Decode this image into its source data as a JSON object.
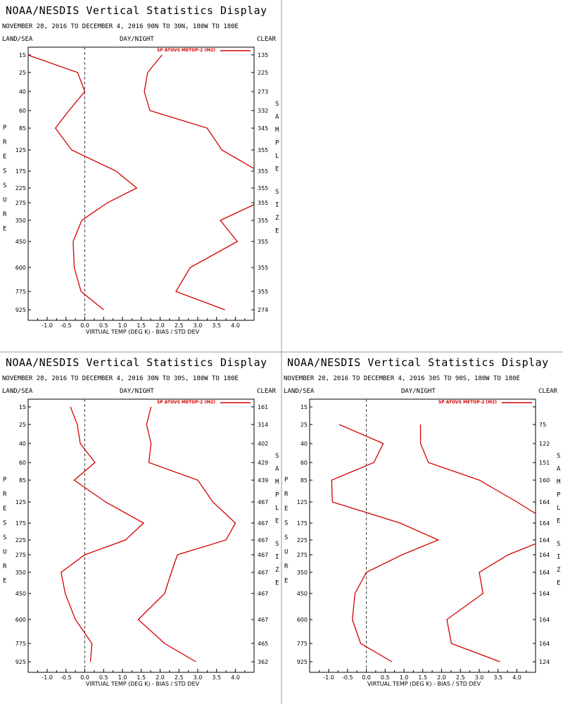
{
  "colors": {
    "line": "#d40000",
    "axis": "#000000",
    "divider": "#999999",
    "zero": "#444444"
  },
  "pressure_levels": [
    "15",
    "25",
    "40",
    "60",
    "85",
    "125",
    "175",
    "225",
    "275",
    "350",
    "450",
    "600",
    "775",
    "925"
  ],
  "x_ticks": [
    "-1.0",
    "-0.5",
    "0.0",
    "0.5",
    "1.0",
    "1.5",
    "2.0",
    "2.5",
    "3.0",
    "3.5",
    "4.0"
  ],
  "labels": {
    "left_header": "LAND/SEA",
    "mid_header": "DAY/NIGHT",
    "right_header": "CLEAR",
    "pressure_vertical": "PRESSURE",
    "sample_vertical": "SAMPLE",
    "size_vertical": "SIZE",
    "xlabel": "VIRTUAL TEMP (DEG K) - BIAS / STD DEV",
    "legend": "SP ATOVS METOP-2 (M2)"
  },
  "chart_data": [
    {
      "type": "line",
      "title": "NOAA/NESDIS Vertical Statistics Display",
      "subtitle": "NOVEMBER 28, 2016 TO DECEMBER 4, 2016 90N TO 30N, 180W TO 180E",
      "xlim": [
        -1.5,
        4.5
      ],
      "sample_size": [
        "135",
        "225",
        "273",
        "332",
        "345",
        "355",
        "355",
        "355",
        "355",
        "355",
        "355",
        "355",
        "355",
        "274"
      ],
      "series": [
        {
          "name": "SP ATOVS METOP-2 (M2)",
          "stat": "bias",
          "y": [
            "15",
            "25",
            "40",
            "60",
            "85",
            "125",
            "175",
            "225",
            "275",
            "350",
            "450",
            "600",
            "775",
            "925"
          ],
          "x": [
            -1.52,
            -0.19,
            0.0,
            -0.42,
            -0.78,
            -0.35,
            0.83,
            1.38,
            0.6,
            -0.08,
            -0.31,
            -0.28,
            -0.1,
            0.5
          ]
        },
        {
          "name": "SP ATOVS METOP-2 (M2)",
          "stat": "std_dev",
          "y": [
            "15",
            "25",
            "40",
            "60",
            "85",
            "125",
            "175",
            "225",
            "275",
            "350",
            "450",
            "600",
            "775",
            "925"
          ],
          "x": [
            2.05,
            1.67,
            1.58,
            1.73,
            3.25,
            3.64,
            4.61,
            4.92,
            4.6,
            3.6,
            4.05,
            2.8,
            2.42,
            3.72
          ]
        }
      ]
    },
    {
      "type": "line",
      "title": "NOAA/NESDIS Vertical Statistics Display",
      "subtitle": "NOVEMBER 28, 2016 TO DECEMBER 4, 2016 30N TO 30S, 180W TO 180E",
      "xlim": [
        -1.5,
        4.5
      ],
      "sample_size": [
        "161",
        "314",
        "402",
        "429",
        "439",
        "467",
        "467",
        "467",
        "467",
        "467",
        "467",
        "467",
        "465",
        "362"
      ],
      "series": [
        {
          "name": "SP ATOVS METOP-2 (M2)",
          "stat": "bias",
          "y": [
            "15",
            "25",
            "40",
            "60",
            "85",
            "125",
            "175",
            "225",
            "275",
            "350",
            "450",
            "600",
            "775",
            "925"
          ],
          "x": [
            -0.38,
            -0.2,
            -0.12,
            0.27,
            -0.28,
            0.55,
            1.56,
            1.08,
            0.0,
            -0.63,
            -0.52,
            -0.25,
            0.19,
            0.15
          ]
        },
        {
          "name": "SP ATOVS METOP-2 (M2)",
          "stat": "std_dev",
          "y": [
            "15",
            "25",
            "40",
            "60",
            "85",
            "125",
            "175",
            "225",
            "275",
            "350",
            "450",
            "600",
            "775",
            "925"
          ],
          "x": [
            1.76,
            1.64,
            1.76,
            1.7,
            3.0,
            3.4,
            4.0,
            3.75,
            2.46,
            2.3,
            2.12,
            1.42,
            2.12,
            2.95
          ]
        }
      ]
    },
    {
      "type": "line",
      "title": "NOAA/NESDIS Vertical Statistics Display",
      "subtitle": "NOVEMBER 28, 2016 TO DECEMBER 4, 2016 30S TO 90S, 180W TO 180E",
      "xlim": [
        -1.5,
        4.5
      ],
      "sample_size": [
        "",
        "75",
        "122",
        "151",
        "160",
        "164",
        "164",
        "164",
        "164",
        "164",
        "164",
        "164",
        "164",
        "124"
      ],
      "series": [
        {
          "name": "SP ATOVS METOP-2 (M2)",
          "stat": "bias",
          "y": [
            "25",
            "40",
            "60",
            "85",
            "125",
            "175",
            "225",
            "275",
            "350",
            "450",
            "600",
            "775",
            "925"
          ],
          "x": [
            -0.72,
            0.45,
            0.2,
            -0.92,
            -0.9,
            0.9,
            1.91,
            0.95,
            0.0,
            -0.3,
            -0.37,
            -0.15,
            0.68
          ]
        },
        {
          "name": "SP ATOVS METOP-2 (M2)",
          "stat": "std_dev",
          "y": [
            "25",
            "40",
            "60",
            "85",
            "125",
            "175",
            "225",
            "275",
            "350",
            "450",
            "600",
            "775",
            "925"
          ],
          "x": [
            1.44,
            1.44,
            1.65,
            3.0,
            4.0,
            4.9,
            4.75,
            3.77,
            3.0,
            3.1,
            2.14,
            2.26,
            3.55
          ]
        }
      ]
    }
  ]
}
